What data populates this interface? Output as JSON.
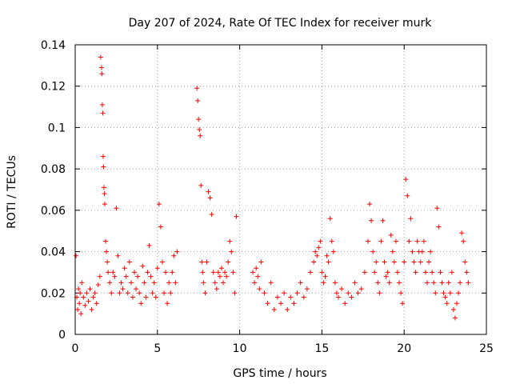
{
  "chart_data": {
    "type": "scatter",
    "title": "Day 207 of 2024, Rate Of TEC Index for receiver murk",
    "xlabel": "GPS time / hours",
    "ylabel": "ROTI / TECUs",
    "xlim": [
      0,
      25
    ],
    "ylim": [
      0,
      0.14
    ],
    "x_ticks": [
      0,
      5,
      10,
      15,
      20,
      25
    ],
    "x_tick_labels": [
      "0",
      "5",
      "10",
      "15",
      "20",
      "25"
    ],
    "y_ticks": [
      0,
      0.02,
      0.04,
      0.06,
      0.08,
      0.1,
      0.12,
      0.14
    ],
    "y_tick_labels": [
      "0",
      "0.02",
      "0.04",
      "0.06",
      "0.08",
      "0.1",
      "0.12",
      "0.14"
    ],
    "grid": true,
    "marker": "plus",
    "color": "#ff0000",
    "series": [
      {
        "x": [
          0.05,
          0.1,
          0.15,
          0.2,
          0.25,
          0.3,
          0.35,
          0.4,
          0.5,
          0.6,
          0.7,
          0.8,
          0.9,
          1.0,
          1.1,
          1.2,
          1.3,
          1.4,
          1.5,
          1.55,
          1.6,
          1.62,
          1.65,
          1.68,
          1.7,
          1.72,
          1.75,
          1.78,
          1.8,
          1.85,
          1.9,
          1.95,
          2.0,
          2.1,
          2.2,
          2.3,
          2.4,
          2.5,
          2.6,
          2.7,
          2.8,
          2.9,
          3.0,
          3.1,
          3.2,
          3.3,
          3.4,
          3.5,
          3.6,
          3.7,
          3.8,
          3.9,
          4.0,
          4.1,
          4.2,
          4.3,
          4.4,
          4.5,
          4.6,
          4.7,
          4.8,
          4.9,
          5.0,
          5.1,
          5.2,
          5.3,
          5.4,
          5.5,
          5.6,
          5.7,
          5.8,
          5.9,
          6.0,
          6.1,
          6.2,
          7.4,
          7.45,
          7.5,
          7.55,
          7.6,
          7.65,
          7.7,
          7.75,
          7.8,
          7.9,
          8.0,
          8.1,
          8.2,
          8.3,
          8.4,
          8.5,
          8.6,
          8.7,
          8.8,
          8.9,
          9.0,
          9.1,
          9.2,
          9.3,
          9.4,
          9.5,
          9.6,
          9.7,
          9.8,
          10.8,
          10.9,
          11.0,
          11.1,
          11.2,
          11.3,
          11.5,
          11.7,
          11.9,
          12.1,
          12.3,
          12.5,
          12.7,
          12.9,
          13.1,
          13.3,
          13.5,
          13.7,
          13.9,
          14.1,
          14.3,
          14.5,
          14.6,
          14.7,
          14.8,
          14.9,
          15.0,
          15.1,
          15.2,
          15.3,
          15.4,
          15.5,
          15.6,
          15.7,
          15.8,
          15.9,
          16.0,
          16.2,
          16.4,
          16.6,
          16.8,
          17.0,
          17.2,
          17.4,
          17.6,
          17.8,
          17.9,
          18.0,
          18.1,
          18.2,
          18.3,
          18.4,
          18.5,
          18.6,
          18.7,
          18.8,
          18.9,
          19.0,
          19.1,
          19.2,
          19.3,
          19.4,
          19.5,
          19.6,
          19.7,
          19.8,
          19.9,
          20.0,
          20.1,
          20.2,
          20.3,
          20.4,
          20.5,
          20.6,
          20.7,
          20.8,
          20.9,
          21.0,
          21.1,
          21.2,
          21.3,
          21.4,
          21.5,
          21.6,
          21.7,
          21.8,
          21.9,
          22.0,
          22.1,
          22.2,
          22.3,
          22.4,
          22.5,
          22.6,
          22.7,
          22.8,
          22.9,
          23.0,
          23.1,
          23.2,
          23.3,
          23.4,
          23.5,
          23.6,
          23.7,
          23.8,
          23.9
        ],
        "y": [
          0.038,
          0.018,
          0.012,
          0.022,
          0.015,
          0.02,
          0.01,
          0.025,
          0.018,
          0.014,
          0.02,
          0.016,
          0.022,
          0.012,
          0.018,
          0.02,
          0.015,
          0.024,
          0.028,
          0.134,
          0.129,
          0.126,
          0.111,
          0.107,
          0.086,
          0.081,
          0.071,
          0.068,
          0.063,
          0.045,
          0.04,
          0.035,
          0.03,
          0.025,
          0.02,
          0.03,
          0.028,
          0.061,
          0.038,
          0.02,
          0.025,
          0.022,
          0.032,
          0.028,
          0.02,
          0.035,
          0.025,
          0.018,
          0.03,
          0.022,
          0.028,
          0.02,
          0.015,
          0.033,
          0.025,
          0.018,
          0.03,
          0.043,
          0.028,
          0.02,
          0.025,
          0.018,
          0.032,
          0.063,
          0.052,
          0.035,
          0.02,
          0.03,
          0.015,
          0.025,
          0.02,
          0.03,
          0.038,
          0.025,
          0.04,
          0.119,
          0.113,
          0.104,
          0.099,
          0.096,
          0.072,
          0.035,
          0.03,
          0.025,
          0.02,
          0.035,
          0.069,
          0.066,
          0.058,
          0.03,
          0.025,
          0.022,
          0.03,
          0.028,
          0.032,
          0.025,
          0.03,
          0.028,
          0.035,
          0.045,
          0.04,
          0.03,
          0.02,
          0.057,
          0.03,
          0.025,
          0.032,
          0.028,
          0.022,
          0.035,
          0.02,
          0.015,
          0.025,
          0.012,
          0.018,
          0.015,
          0.02,
          0.012,
          0.018,
          0.015,
          0.02,
          0.025,
          0.018,
          0.022,
          0.03,
          0.035,
          0.04,
          0.038,
          0.042,
          0.045,
          0.03,
          0.025,
          0.028,
          0.038,
          0.035,
          0.056,
          0.045,
          0.04,
          0.025,
          0.02,
          0.018,
          0.022,
          0.015,
          0.02,
          0.018,
          0.025,
          0.02,
          0.022,
          0.03,
          0.045,
          0.063,
          0.055,
          0.04,
          0.03,
          0.035,
          0.025,
          0.02,
          0.045,
          0.055,
          0.035,
          0.028,
          0.03,
          0.025,
          0.048,
          0.04,
          0.035,
          0.045,
          0.03,
          0.025,
          0.02,
          0.015,
          0.035,
          0.075,
          0.067,
          0.045,
          0.056,
          0.04,
          0.035,
          0.03,
          0.045,
          0.04,
          0.035,
          0.04,
          0.045,
          0.03,
          0.025,
          0.035,
          0.04,
          0.03,
          0.025,
          0.02,
          0.061,
          0.052,
          0.03,
          0.025,
          0.02,
          0.018,
          0.015,
          0.025,
          0.02,
          0.03,
          0.012,
          0.008,
          0.015,
          0.02,
          0.025,
          0.049,
          0.045,
          0.035,
          0.03,
          0.025
        ]
      }
    ]
  }
}
